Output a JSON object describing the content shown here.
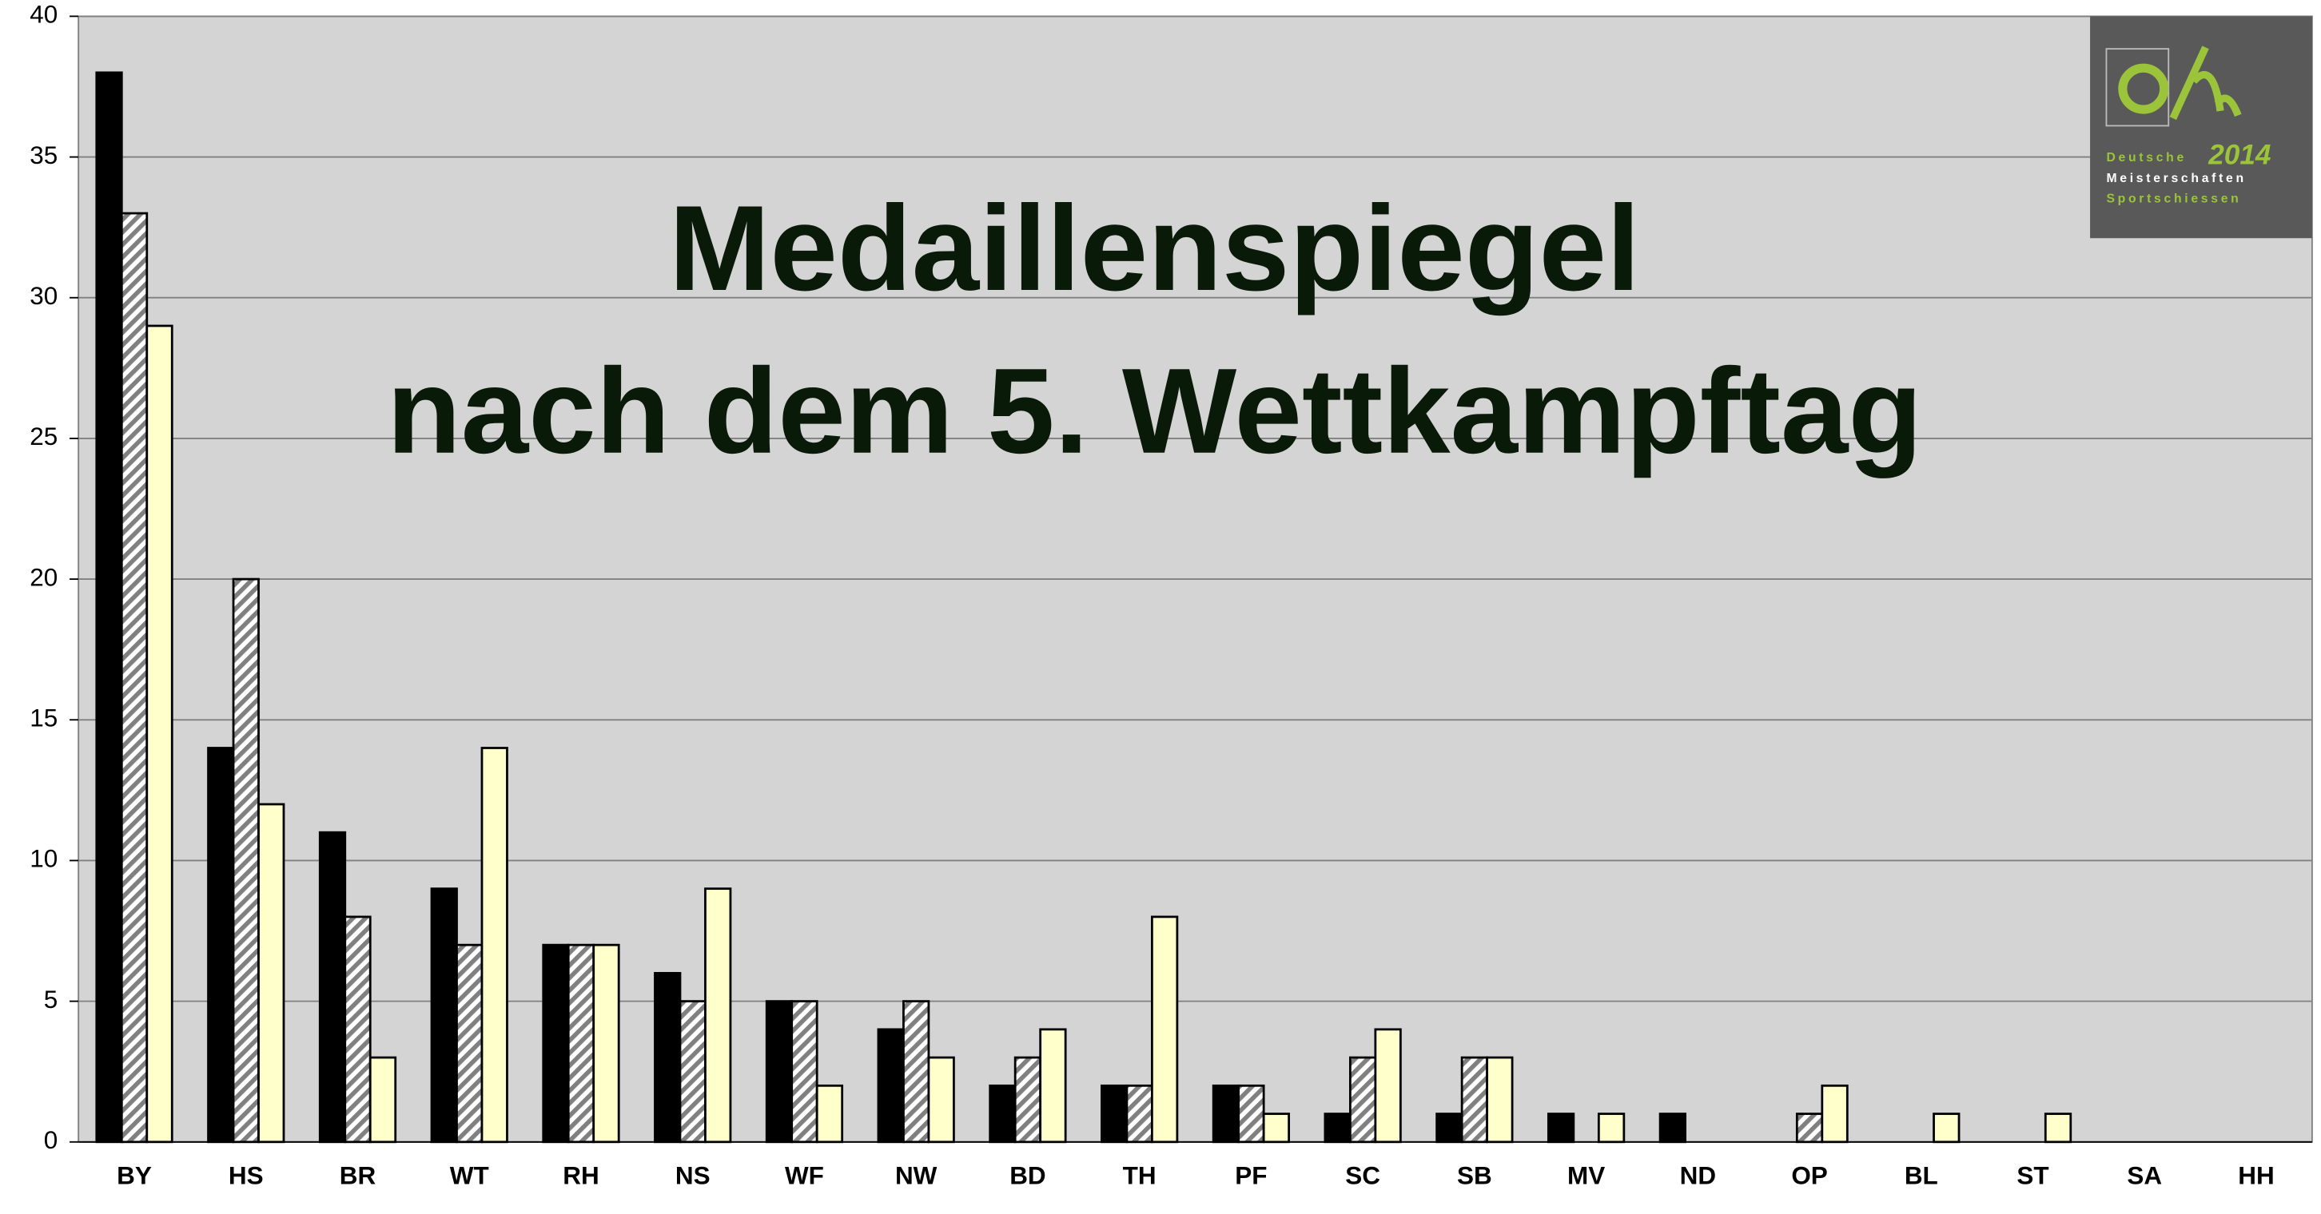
{
  "chart_data": {
    "type": "bar",
    "title_lines": [
      "Medaillenspiegel",
      "nach dem 5. Wettkampftag"
    ],
    "logo": {
      "line1": "Deutsche",
      "year": "2014",
      "line2": "Meisterschaften",
      "line3": "Sportschiessen"
    },
    "categories": [
      "BY",
      "HS",
      "BR",
      "WT",
      "RH",
      "NS",
      "WF",
      "NW",
      "BD",
      "TH",
      "PF",
      "SC",
      "SB",
      "MV",
      "ND",
      "OP",
      "BL",
      "ST",
      "SA",
      "HH"
    ],
    "series": [
      {
        "color": "#000000",
        "values": [
          38,
          14,
          11,
          9,
          7,
          6,
          5,
          4,
          2,
          2,
          2,
          1,
          1,
          1,
          1,
          0,
          0,
          0,
          0,
          0
        ]
      },
      {
        "color": "hatched",
        "values": [
          33,
          20,
          8,
          7,
          7,
          5,
          5,
          5,
          3,
          2,
          2,
          3,
          3,
          0,
          0,
          1,
          0,
          0,
          0,
          0
        ]
      },
      {
        "color": "#ffffcc",
        "values": [
          29,
          12,
          3,
          14,
          7,
          9,
          2,
          3,
          4,
          8,
          1,
          4,
          3,
          1,
          0,
          2,
          1,
          1,
          0,
          0
        ]
      }
    ],
    "ylim": [
      0,
      40
    ],
    "yticks": [
      0,
      5,
      10,
      15,
      20,
      25,
      30,
      35,
      40
    ],
    "grid": true
  }
}
